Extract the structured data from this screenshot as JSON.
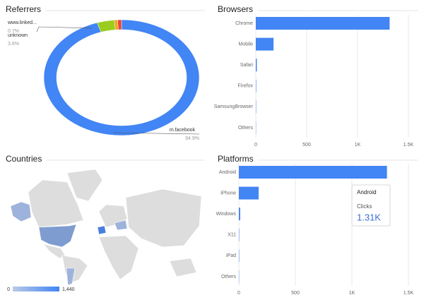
{
  "chart_data": [
    {
      "type": "donut",
      "title": "Referrers",
      "categories": [
        "m.facebook",
        "unknown",
        "www.linked...",
        null
      ],
      "values": [
        94.9,
        3.6,
        0.7,
        0.8
      ],
      "value_labels": [
        "94.9%",
        "3.6%",
        "0.7%",
        null
      ],
      "colors": [
        "#4285f4",
        "#9acd1f",
        "#f4a41c",
        "#e8453c"
      ]
    },
    {
      "type": "hbar",
      "title": "Browsers",
      "categories": [
        "Chrome",
        "Mobile",
        "Safari",
        "Firefox",
        "SamsungBrowser",
        "Others"
      ],
      "values": [
        1315,
        174,
        10,
        4,
        3,
        2
      ],
      "color": "#4285f4",
      "xlim": [
        0,
        1500
      ],
      "xticks": [
        0,
        500,
        {
          "value": 1000,
          "label": "1K"
        },
        {
          "value": 1500,
          "label": "1.5K"
        }
      ],
      "grid": true
    },
    {
      "type": "map",
      "title": "Countries",
      "zlim": [
        0,
        1440
      ],
      "zticks": [
        0,
        {
          "value": 1440,
          "label": "1,440"
        }
      ],
      "colors": [
        "#b9c9e6",
        "#4285f4"
      ]
    },
    {
      "type": "hbar",
      "title": "Platforms",
      "categories": [
        "Android",
        "iPhone",
        "Windows",
        "X11",
        "iPad",
        "Others"
      ],
      "values": [
        1310,
        175,
        12,
        3,
        3,
        2
      ],
      "color": "#4285f4",
      "xlim": [
        0,
        1500
      ],
      "xticks": [
        0,
        500,
        {
          "value": 1000,
          "label": "1K"
        },
        {
          "value": 1500,
          "label": "1.5K"
        }
      ],
      "grid": true,
      "tooltip": {
        "category": "Android",
        "series_name": "Clicks",
        "value_label": "1.31K"
      }
    }
  ]
}
